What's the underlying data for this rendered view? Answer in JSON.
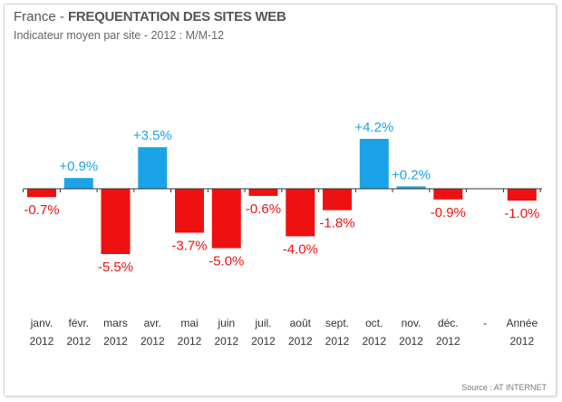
{
  "header": {
    "title_prefix": "France - ",
    "title_main": "FREQUENTATION DES SITES WEB",
    "subtitle": "Indicateur moyen par site - 2012 : M/M-12"
  },
  "footer": {
    "source": "Source : AT INTERNET"
  },
  "colors": {
    "positive": "#1aa3e8",
    "negative": "#ee1111",
    "axis": "#333333"
  },
  "chart_data": {
    "type": "bar",
    "title": "France - FREQUENTATION DES SITES WEB",
    "subtitle": "Indicateur moyen par site - 2012 : M/M-12",
    "categories": [
      [
        "janv.",
        "2012"
      ],
      [
        "févr.",
        "2012"
      ],
      [
        "mars",
        "2012"
      ],
      [
        "avr.",
        "2012"
      ],
      [
        "mai",
        "2012"
      ],
      [
        "juin",
        "2012"
      ],
      [
        "juil.",
        "2012"
      ],
      [
        "août",
        "2012"
      ],
      [
        "sept.",
        "2012"
      ],
      [
        "oct.",
        "2012"
      ],
      [
        "nov.",
        "2012"
      ],
      [
        "déc.",
        "2012"
      ],
      [
        "-",
        ""
      ],
      [
        "Année",
        "2012"
      ]
    ],
    "values": [
      -0.7,
      0.9,
      -5.5,
      3.5,
      -3.7,
      -5.0,
      -0.6,
      -4.0,
      -1.8,
      4.2,
      0.2,
      -0.9,
      null,
      -1.0
    ],
    "labels": [
      "-0.7%",
      "+0.9%",
      "-5.5%",
      "+3.5%",
      "-3.7%",
      "-5.0%",
      "-0.6%",
      "-4.0%",
      "-1.8%",
      "+4.2%",
      "+0.2%",
      "-0.9%",
      "",
      "-1.0%"
    ],
    "unit": "%",
    "legend": "none",
    "grid": false
  }
}
